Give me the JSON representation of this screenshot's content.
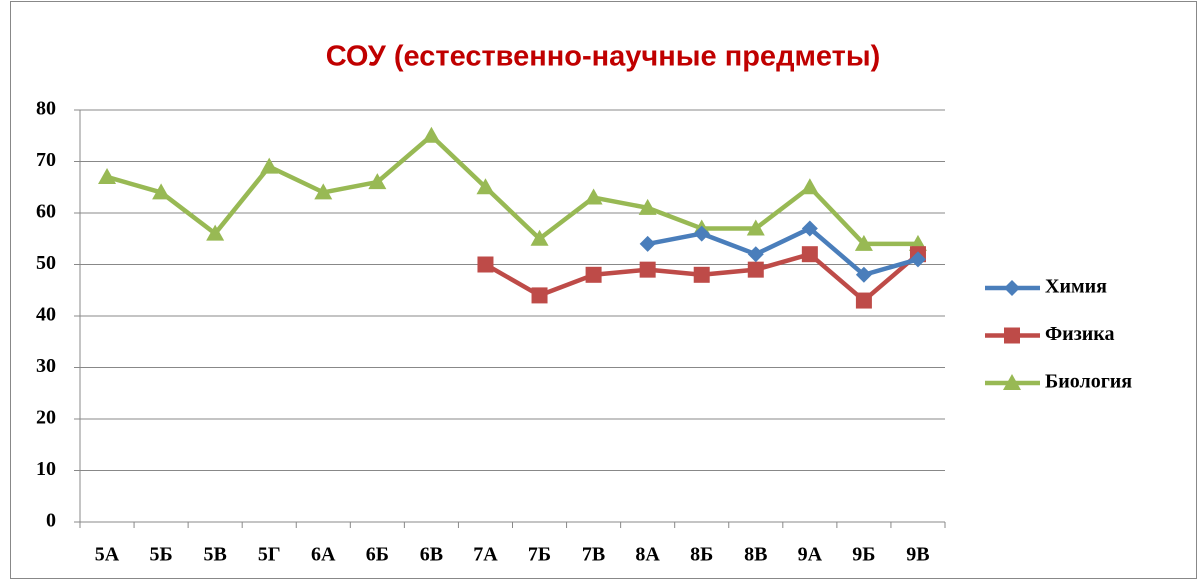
{
  "chart_data": {
    "type": "line",
    "title": "СОУ (естественно-научные предметы)",
    "categories": [
      "5А",
      "5Б",
      "5В",
      "5Г",
      "6А",
      "6Б",
      "6В",
      "7А",
      "7Б",
      "7В",
      "8А",
      "8Б",
      "8В",
      "9А",
      "9Б",
      "9В"
    ],
    "series": [
      {
        "name": "Химия",
        "color": "#4a7ebb",
        "marker": "diamond",
        "values": [
          null,
          null,
          null,
          null,
          null,
          null,
          null,
          null,
          null,
          null,
          54,
          56,
          52,
          57,
          48,
          51
        ]
      },
      {
        "name": "Физика",
        "color": "#be4b48",
        "marker": "square",
        "values": [
          null,
          null,
          null,
          null,
          null,
          null,
          null,
          50,
          44,
          48,
          49,
          48,
          49,
          52,
          43,
          52
        ]
      },
      {
        "name": "Биология",
        "color": "#98b954",
        "marker": "triangle",
        "values": [
          67,
          64,
          56,
          69,
          64,
          66,
          75,
          65,
          55,
          63,
          61,
          57,
          57,
          65,
          54,
          54
        ]
      }
    ],
    "ylim": [
      0,
      80
    ],
    "yticks": [
      0,
      10,
      20,
      30,
      40,
      50,
      60,
      70,
      80
    ],
    "grid": true,
    "legend": "right"
  }
}
